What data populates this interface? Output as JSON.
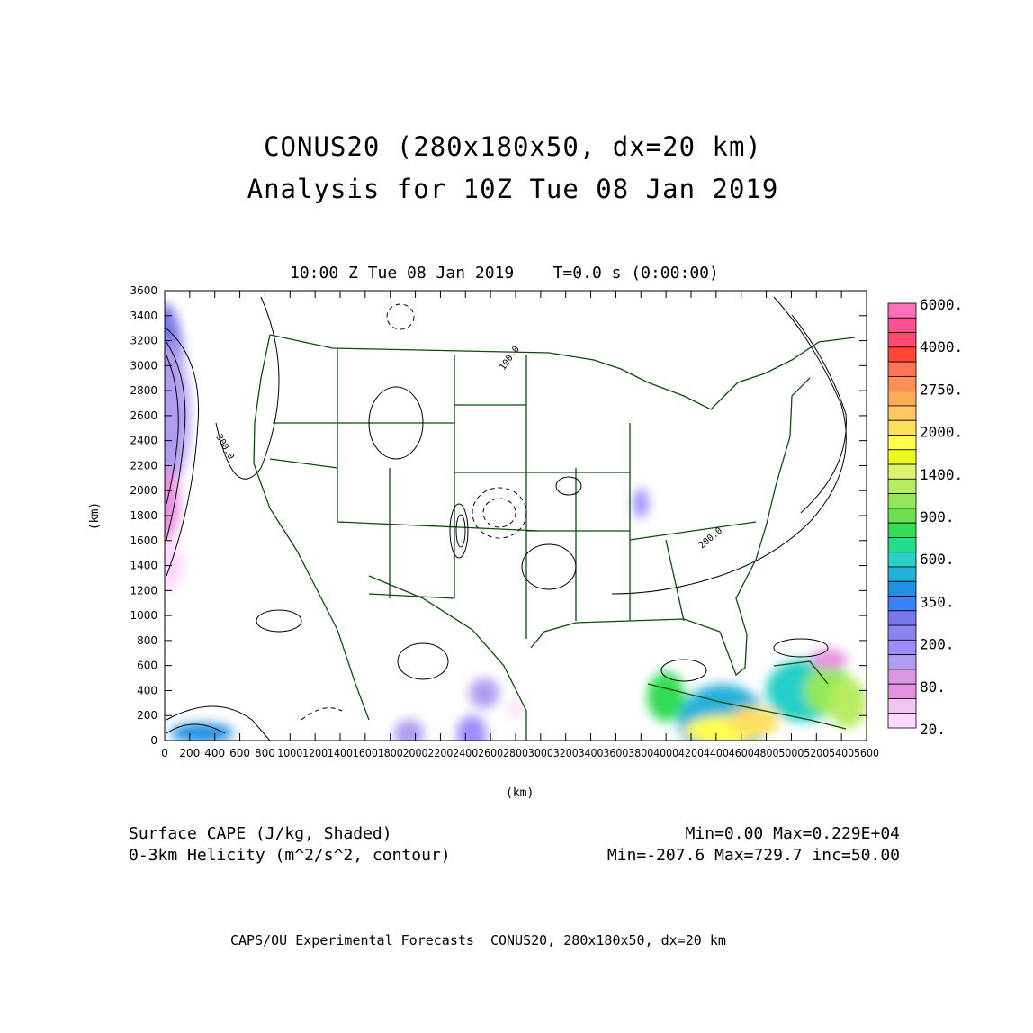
{
  "title_line1": "CONUS20 (280x180x50, dx=20 km)",
  "title_line2": "Analysis for 10Z Tue 08 Jan 2019",
  "plot_time": "10:00 Z Tue 08 Jan 2019    T=0.0 s (0:00:00)",
  "xlabel": "(km)",
  "ylabel": "(km)",
  "x_ticks": [
    "0",
    "200",
    "400",
    "600",
    "800",
    "1000",
    "1200",
    "1400",
    "1600",
    "1800",
    "2000",
    "2200",
    "2400",
    "2600",
    "2800",
    "3000",
    "3200",
    "3400",
    "3600",
    "3800",
    "4000",
    "4200",
    "4400",
    "4600",
    "4800",
    "5000",
    "5200",
    "5400",
    "5600"
  ],
  "y_ticks": [
    "0",
    "200",
    "400",
    "600",
    "800",
    "1000",
    "1200",
    "1400",
    "1600",
    "1800",
    "2000",
    "2200",
    "2400",
    "2600",
    "2800",
    "3000",
    "3200",
    "3400",
    "3600"
  ],
  "colorbar": {
    "labels": [
      "6000.",
      "4000.",
      "2750.",
      "2000.",
      "1400.",
      "900.",
      "600.",
      "350.",
      "200.",
      "80.",
      "20."
    ],
    "colors": [
      "#ff70b8",
      "#ff5090",
      "#ff4a70",
      "#ff4535",
      "#ff7555",
      "#ff9055",
      "#ffac58",
      "#ffc862",
      "#ffdf5e",
      "#ffff50",
      "#e8fa20",
      "#dff270",
      "#b8ec60",
      "#92e858",
      "#6ee050",
      "#33dd55",
      "#25dd88",
      "#28d0c8",
      "#25b0d8",
      "#2090e0",
      "#3a80ff",
      "#7a78e8",
      "#8c84ee",
      "#9c8cff",
      "#b09cf0",
      "#d898e0",
      "#e890e0",
      "#f2c4f2",
      "#ffd8ff"
    ]
  },
  "field1_label": "Surface CAPE (J/kg, Shaded)",
  "field1_stats": "Min=0.00 Max=0.229E+04",
  "field2_label": "0-3km Helicity (m^2/s^2, contour)",
  "field2_stats": "Min=-207.6 Max=729.7 inc=50.00",
  "contour_labels": [
    "100.0",
    "200.0",
    "300.0"
  ],
  "footer": "CAPS/OU Experimental Forecasts  CONUS20, 280x180x50, dx=20 km"
}
